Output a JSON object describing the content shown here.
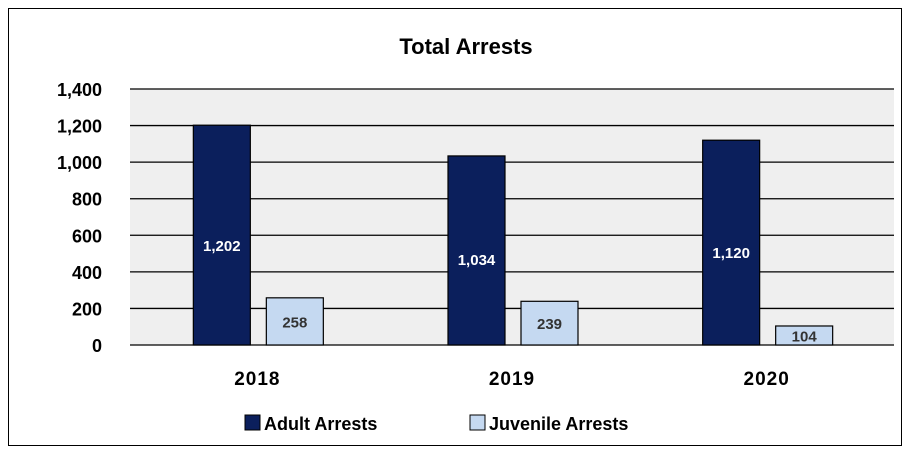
{
  "chart_data": {
    "type": "bar",
    "title": "Total Arrests",
    "xlabel": "",
    "ylabel": "",
    "categories": [
      "2018",
      "2019",
      "2020"
    ],
    "series": [
      {
        "name": "Adult Arrests",
        "values": [
          1202,
          1034,
          1120
        ],
        "labels": [
          "1,202",
          "1,034",
          "1,120"
        ],
        "color": "#0b1f5c"
      },
      {
        "name": "Juvenile Arrests",
        "values": [
          258,
          239,
          104
        ],
        "labels": [
          "258",
          "239",
          "104"
        ],
        "color": "#c5d9f1"
      }
    ],
    "ylim": [
      0,
      1400
    ],
    "yticks": [
      0,
      200,
      400,
      600,
      800,
      1000,
      1200,
      1400
    ],
    "ytick_labels": [
      "0",
      "200",
      "400",
      "600",
      "800",
      "1,000",
      "1,200",
      "1,400"
    ],
    "grid": true,
    "plot_background": "#efefef",
    "legend_position": "bottom"
  }
}
